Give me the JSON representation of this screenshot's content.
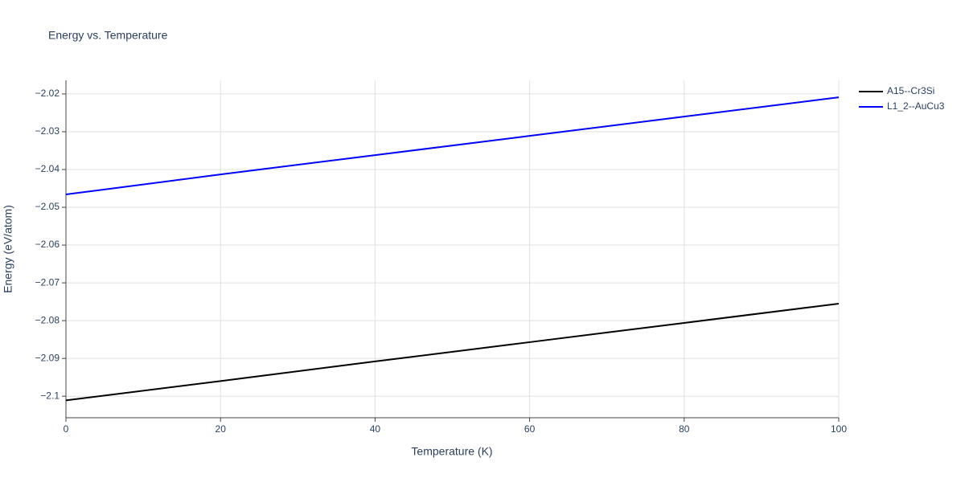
{
  "chart_data": {
    "type": "line",
    "title": "Energy vs. Temperature",
    "x_label": "Temperature (K)",
    "y_label": "Energy (eV/atom)",
    "x": [
      0,
      20,
      40,
      60,
      80,
      100
    ],
    "series": [
      {
        "name": "A15--Cr3Si",
        "color": "#000000",
        "values": [
          -2.1011,
          -2.096,
          -2.0908,
          -2.0857,
          -2.0806,
          -2.0755
        ]
      },
      {
        "name": "L1_2--AuCu3",
        "color": "#0000ff",
        "values": [
          -2.0466,
          -2.0413,
          -2.0362,
          -2.0311,
          -2.026,
          -2.0209
        ]
      }
    ],
    "xlim": [
      0,
      100
    ],
    "xticks": [
      0,
      20,
      40,
      60,
      80,
      100
    ],
    "ylim": [
      -2.1057,
      -2.0164
    ],
    "yticks": [
      {
        "value": -2.1,
        "label": "−2.1"
      },
      {
        "value": -2.09,
        "label": "−2.09"
      },
      {
        "value": -2.08,
        "label": "−2.08"
      },
      {
        "value": -2.07,
        "label": "−2.07"
      },
      {
        "value": -2.06,
        "label": "−2.06"
      },
      {
        "value": -2.05,
        "label": "−2.05"
      },
      {
        "value": -2.04,
        "label": "−2.04"
      },
      {
        "value": -2.03,
        "label": "−2.03"
      },
      {
        "value": -2.02,
        "label": "−2.02"
      }
    ],
    "grid": true,
    "legend": "top-right"
  }
}
